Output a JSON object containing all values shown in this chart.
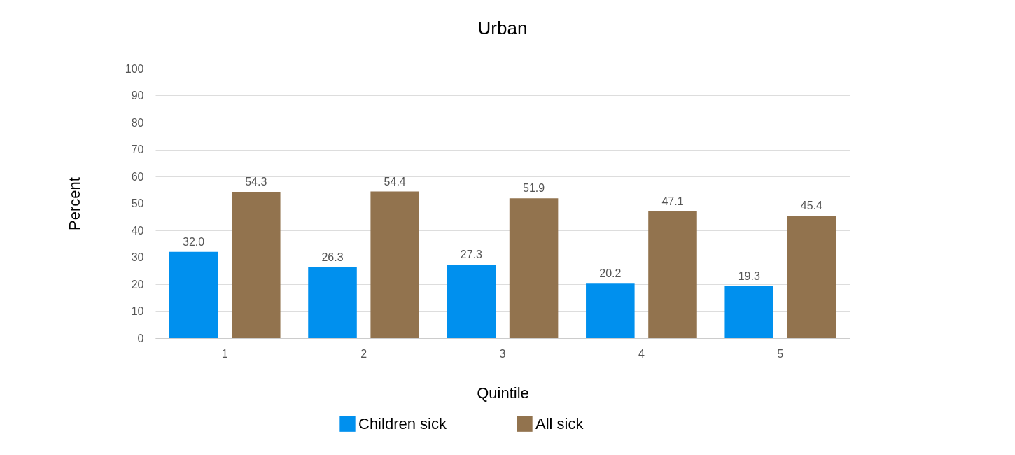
{
  "chart_data": {
    "type": "bar",
    "title": "Urban",
    "xlabel": "Quintile",
    "ylabel": "Percent",
    "categories": [
      "1",
      "2",
      "3",
      "4",
      "5"
    ],
    "series": [
      {
        "name": "Children sick",
        "color": "#0090ee",
        "values": [
          32.0,
          26.3,
          27.3,
          20.2,
          19.3
        ],
        "value_labels": [
          "32.0",
          "26.3",
          "27.3",
          "20.2",
          "19.3"
        ]
      },
      {
        "name": "All sick",
        "color": "#92734e",
        "values": [
          54.3,
          54.4,
          51.9,
          47.1,
          45.4
        ],
        "value_labels": [
          "54.3",
          "54.4",
          "51.9",
          "47.1",
          "45.4"
        ]
      }
    ],
    "ylim": [
      0,
      100
    ],
    "yticks": [
      0,
      10,
      20,
      30,
      40,
      50,
      60,
      70,
      80,
      90,
      100
    ],
    "grid": "y",
    "legend": "bottom"
  }
}
